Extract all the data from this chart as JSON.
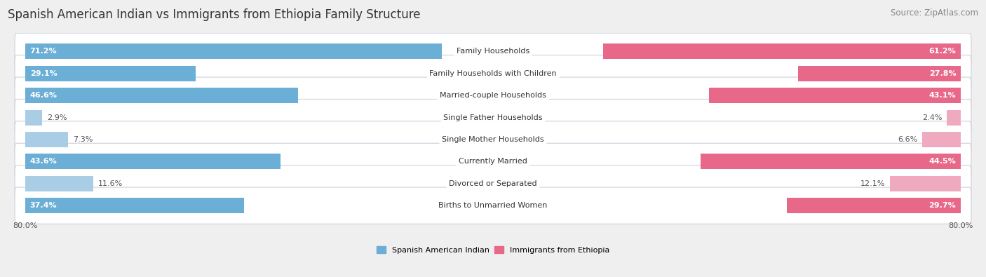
{
  "title": "Spanish American Indian vs Immigrants from Ethiopia Family Structure",
  "source": "Source: ZipAtlas.com",
  "categories": [
    "Family Households",
    "Family Households with Children",
    "Married-couple Households",
    "Single Father Households",
    "Single Mother Households",
    "Currently Married",
    "Divorced or Separated",
    "Births to Unmarried Women"
  ],
  "left_values": [
    71.2,
    29.1,
    46.6,
    2.9,
    7.3,
    43.6,
    11.6,
    37.4
  ],
  "right_values": [
    61.2,
    27.8,
    43.1,
    2.4,
    6.6,
    44.5,
    12.1,
    29.7
  ],
  "left_color_strong": "#6baed6",
  "left_color_light": "#a8cde4",
  "right_color_strong": "#e8688a",
  "right_color_light": "#f0aabf",
  "max_value": 80.0,
  "left_label": "Spanish American Indian",
  "right_label": "Immigrants from Ethiopia",
  "bg_color": "#efefef",
  "title_fontsize": 12,
  "source_fontsize": 8.5,
  "bar_fontsize": 8,
  "label_fontsize": 8,
  "threshold": 15
}
